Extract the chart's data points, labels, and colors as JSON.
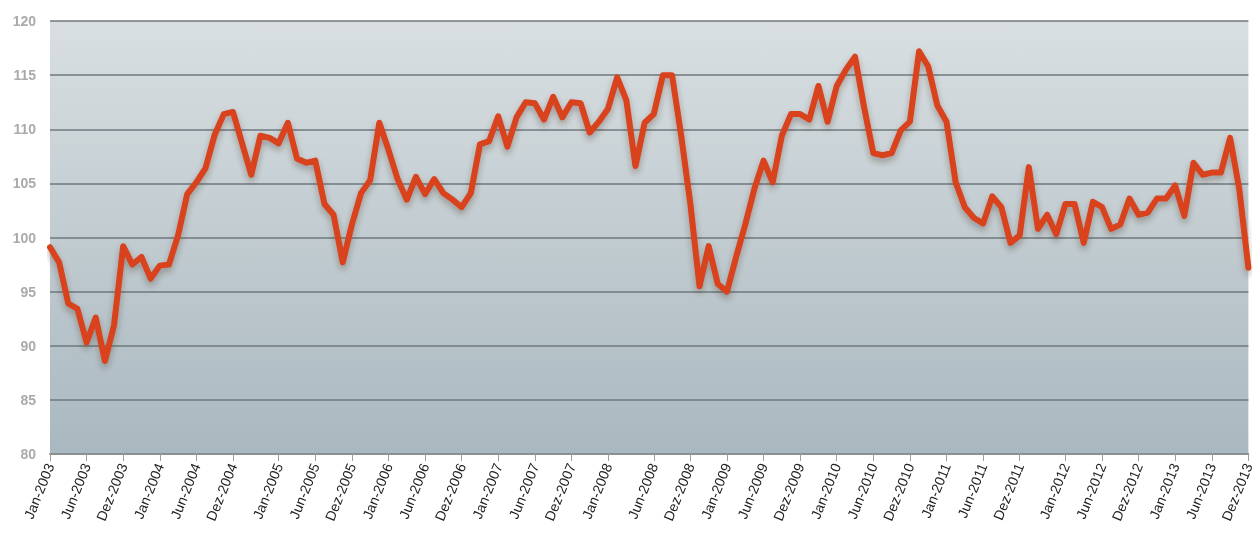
{
  "chart_data": {
    "type": "line",
    "categories": [
      "Jan-2003",
      null,
      null,
      null,
      "Jun-2003",
      null,
      null,
      null,
      "Dez-2003",
      null,
      null,
      null,
      "Jan-2004",
      null,
      null,
      null,
      "Jun-2004",
      null,
      null,
      null,
      "Dez-2004",
      null,
      null,
      null,
      null,
      "Jan-2005",
      null,
      null,
      null,
      "Jun-2005",
      null,
      null,
      null,
      "Dez-2005",
      null,
      null,
      null,
      "Jan-2006",
      null,
      null,
      null,
      "Jun-2006",
      null,
      null,
      null,
      "Dez-2006",
      null,
      null,
      null,
      "Jan-2007",
      null,
      null,
      null,
      "Jun-2007",
      null,
      null,
      null,
      "Dez-2007",
      null,
      null,
      null,
      "Jan-2008",
      null,
      null,
      null,
      null,
      "Jun-2008",
      null,
      null,
      null,
      "Dez-2008",
      null,
      null,
      null,
      "Jan-2009",
      null,
      null,
      null,
      "Jun-2009",
      null,
      null,
      null,
      "Dez-2009",
      null,
      null,
      null,
      "Jan-2010",
      null,
      null,
      null,
      "Jun-2010",
      null,
      null,
      null,
      "Dez-2010",
      null,
      null,
      null,
      "Jan-2011",
      null,
      null,
      null,
      "Jun-2011",
      null,
      null,
      null,
      "Dez-2011",
      null,
      null,
      null,
      null,
      "Jan-2012",
      null,
      null,
      null,
      "Jun-2012",
      null,
      null,
      null,
      "Dez-2012",
      null,
      null,
      null,
      "Jan-2013",
      null,
      null,
      null,
      "Jun-2013",
      null,
      null,
      null,
      "Dez-2013"
    ],
    "series": [
      {
        "color": "#d8421e",
        "values": [
          99.1,
          97.7,
          93.9,
          93.4,
          90.3,
          92.6,
          88.6,
          91.9,
          99.2,
          97.5,
          98.2,
          96.2,
          97.4,
          97.5,
          100.2,
          104.0,
          105.1,
          106.4,
          109.5,
          111.4,
          111.6,
          108.7,
          105.8,
          109.4,
          109.2,
          108.7,
          110.6,
          107.3,
          106.9,
          107.1,
          103.1,
          102.1,
          97.7,
          101.2,
          104.1,
          105.3,
          110.6,
          108.1,
          105.4,
          103.5,
          105.6,
          104.0,
          105.4,
          104.1,
          103.5,
          102.8,
          104.1,
          108.6,
          108.9,
          111.2,
          108.4,
          111.1,
          112.5,
          112.4,
          110.9,
          113.0,
          111.1,
          112.5,
          112.4,
          109.7,
          110.7,
          111.9,
          114.8,
          112.7,
          106.6,
          110.6,
          111.4,
          115.0,
          115.0,
          109.4,
          103.1,
          95.5,
          99.2,
          95.7,
          95.0,
          98.2,
          101.2,
          104.5,
          107.1,
          105.1,
          109.4,
          111.4,
          111.4,
          110.9,
          114.0,
          110.7,
          114.0,
          115.5,
          116.7,
          112.0,
          107.8,
          107.6,
          107.8,
          109.9,
          110.7,
          117.2,
          115.8,
          112.2,
          110.7,
          105.1,
          102.8,
          101.8,
          101.3,
          103.8,
          102.8,
          99.5,
          100.2,
          106.5,
          100.8,
          102.1,
          100.3,
          103.1,
          103.1,
          99.5,
          103.3,
          102.8,
          100.8,
          101.2,
          103.6,
          102.1,
          102.3,
          103.6,
          103.6,
          104.8,
          102.0,
          106.9,
          105.8,
          106.0,
          106.0,
          109.2,
          104.5,
          97.2
        ]
      }
    ],
    "ylim": [
      80,
      120
    ],
    "yticks": [
      80,
      85,
      90,
      95,
      100,
      105,
      110,
      115,
      120
    ],
    "grid": "y",
    "marker": "none",
    "line_style": "solid"
  }
}
